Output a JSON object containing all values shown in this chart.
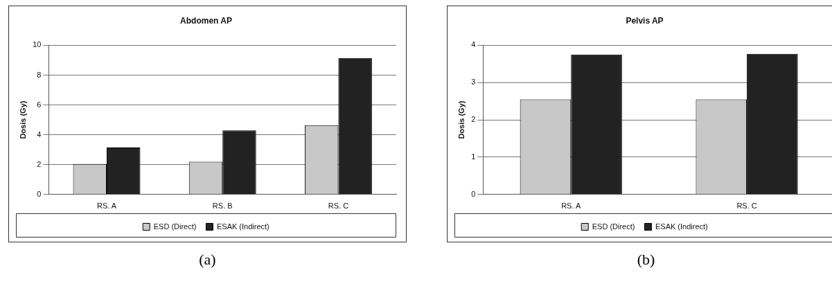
{
  "chart_data": [
    {
      "type": "bar",
      "title": "Abdomen AP",
      "ylabel": "Dosis (Gy)",
      "categories": [
        "RS. A",
        "RS. B",
        "RS. C"
      ],
      "series": [
        {
          "name": "ESD (Direct)",
          "color": "#c8c8c8",
          "values": [
            2.05,
            2.2,
            4.65
          ]
        },
        {
          "name": "ESAK (Indirect)",
          "color": "#222222",
          "values": [
            3.15,
            4.3,
            9.15
          ]
        }
      ],
      "ylim": [
        0,
        10
      ],
      "yticks": [
        0,
        2,
        4,
        6,
        8,
        10
      ],
      "grid": "y",
      "legend": "bottom",
      "annotations": [
        "(a)"
      ]
    },
    {
      "type": "bar",
      "title": "Pelvis AP",
      "ylabel": "Dosis (Gy)",
      "categories": [
        "RS. A",
        "RS. C"
      ],
      "series": [
        {
          "name": "ESD (Direct)",
          "color": "#c8c8c8",
          "values": [
            2.55,
            2.55
          ]
        },
        {
          "name": "ESAK (Indirect)",
          "color": "#222222",
          "values": [
            3.75,
            3.77
          ]
        }
      ],
      "ylim": [
        0,
        4
      ],
      "yticks": [
        0,
        1,
        2,
        3,
        4
      ],
      "grid": "y",
      "legend": "bottom",
      "annotations": [
        "(b)"
      ]
    }
  ]
}
